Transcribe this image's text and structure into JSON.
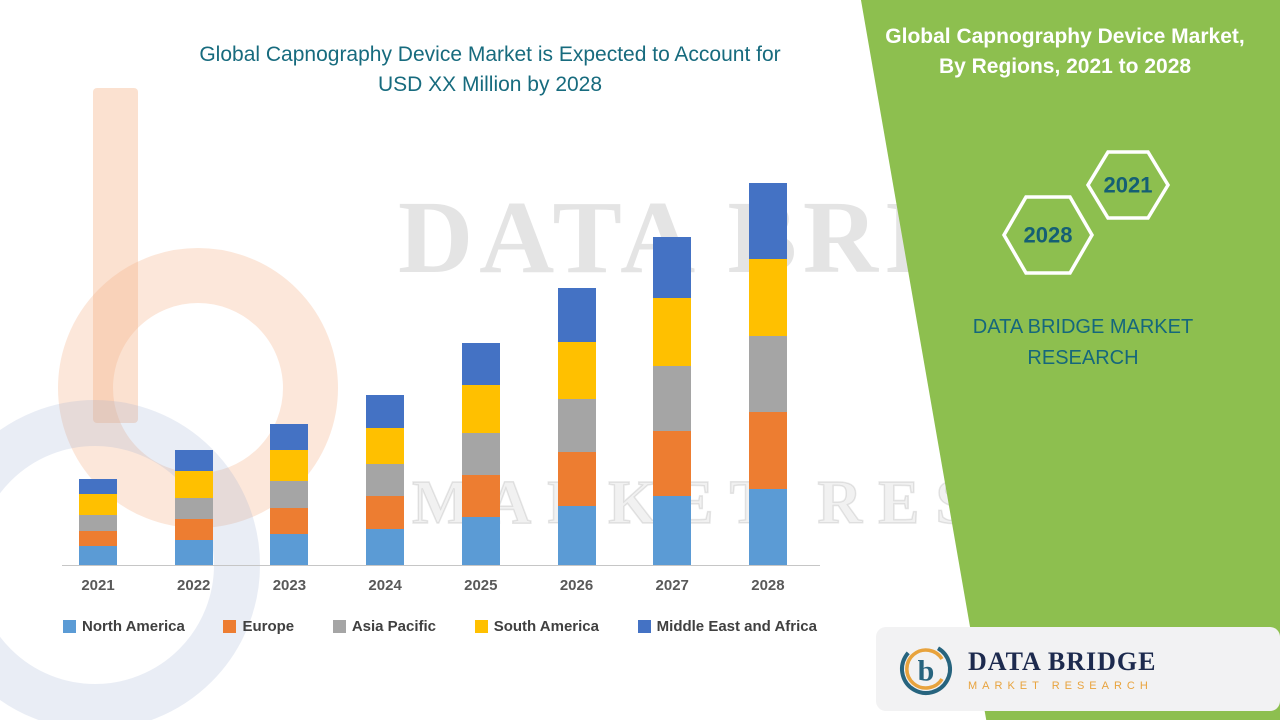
{
  "chart_data": {
    "type": "bar",
    "stacked": true,
    "title": "Global Capnography Device Market is Expected to Account for USD XX Million by 2028",
    "title_lines": [
      "Global Capnography Device Market is Expected to Account for",
      "USD XX Million by 2028"
    ],
    "categories": [
      "2021",
      "2022",
      "2023",
      "2024",
      "2025",
      "2026",
      "2027",
      "2028"
    ],
    "series": [
      {
        "name": "North America",
        "color": "#5B9BD5",
        "values": [
          5,
          6.5,
          8,
          9.5,
          12.5,
          15.5,
          18,
          20
        ]
      },
      {
        "name": "Europe",
        "color": "#ED7D31",
        "values": [
          4,
          5.5,
          7,
          8.5,
          11,
          14,
          17,
          20
        ]
      },
      {
        "name": "Asia Pacific",
        "color": "#A5A5A5",
        "values": [
          4,
          5.5,
          7,
          8.5,
          11,
          14,
          17,
          20
        ]
      },
      {
        "name": "South America",
        "color": "#FFC000",
        "values": [
          5.5,
          7,
          8,
          9.5,
          12.5,
          15,
          18,
          20
        ]
      },
      {
        "name": "Middle East and Africa",
        "color": "#4472C4",
        "values": [
          4,
          5.5,
          7,
          8.5,
          11,
          14,
          16,
          20
        ]
      }
    ],
    "xlabel": "",
    "ylabel": "",
    "ylim": [
      0,
      100
    ],
    "y_axis_visible": false,
    "grid": false,
    "legend_position": "bottom",
    "values_note": "relative estimated heights; actual values shown as USD XX Million (not disclosed)"
  },
  "right_panel": {
    "title_line1": "Global Capnography Device Market,",
    "title_line2": "By Regions, 2021 to 2028",
    "hex_left": "2028",
    "hex_right": "2021",
    "brand_line1": "DATA BRIDGE MARKET",
    "brand_line2": "RESEARCH",
    "background_color": "#8DBF4F",
    "text_color": "#15677C"
  },
  "watermark": {
    "line1": "DATA BRIDGE",
    "line2": "MARKET RESEARCH"
  },
  "logo": {
    "name": "DATA BRIDGE",
    "tagline": "MARKET RESEARCH",
    "symbol": "b-monogram-icon"
  },
  "colors": {
    "title_teal": "#176B7E",
    "axis_label_gray": "#595959",
    "logo_navy": "#1D2A4E",
    "logo_orange": "#E8A33D"
  }
}
